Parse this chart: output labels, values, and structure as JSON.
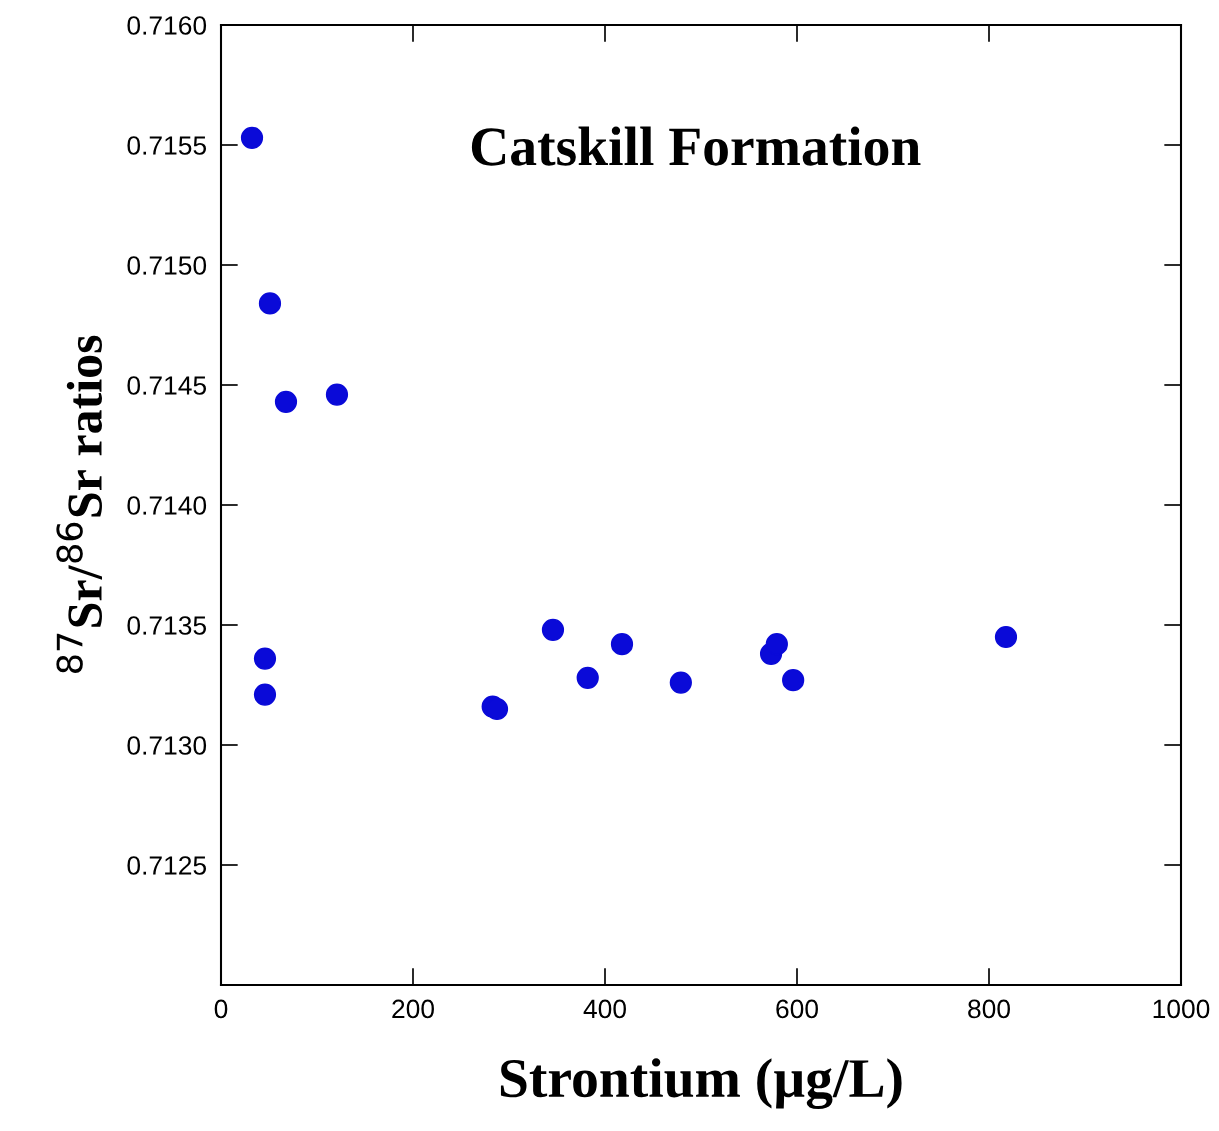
{
  "chart_data": {
    "type": "scatter",
    "title": "Catskill Formation",
    "xlabel": "Strontium (µg/L)",
    "ylabel": "$^{87}$Sr/$^{86}$Sr ratios",
    "x": [
      32.3,
      51,
      67.7,
      120.8,
      45.8,
      45.8,
      283,
      287.5,
      345.8,
      382,
      417.7,
      479,
      573,
      579,
      596,
      817.7
    ],
    "series": [
      {
        "color": "#0a0ad8",
        "values": [
          0.71553,
          0.71484,
          0.71443,
          0.71446,
          0.71336,
          0.71321,
          0.71316,
          0.71315,
          0.71348,
          0.71328,
          0.71342,
          0.71326,
          0.71338,
          0.71342,
          0.71327,
          0.71345
        ]
      }
    ],
    "marker": "circle",
    "grid": false,
    "xlim": [
      0,
      1000
    ],
    "xticks": [
      0,
      200,
      400,
      600,
      800,
      1000
    ],
    "ylim": [
      0.712,
      0.716
    ],
    "yticks": [
      0.7125,
      {
        "value": 0.713,
        "label": "0.7130"
      },
      0.7135,
      {
        "value": 0.714,
        "label": "0.7140"
      },
      0.7145,
      {
        "value": 0.715,
        "label": "0.7150"
      },
      0.7155,
      {
        "value": 0.716,
        "label": "0.7160"
      }
    ]
  }
}
